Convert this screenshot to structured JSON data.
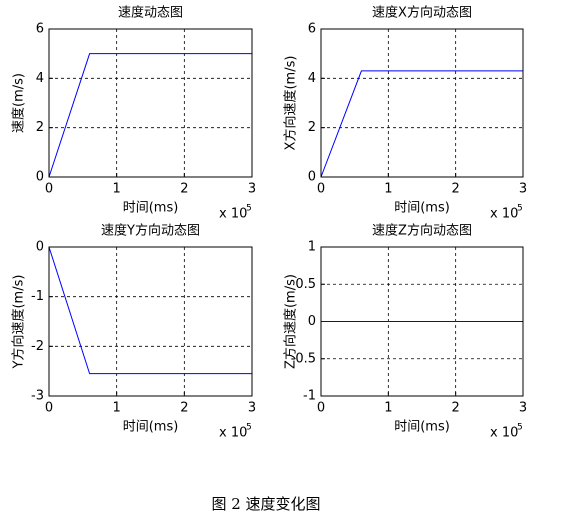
{
  "chart_data": [
    {
      "type": "line",
      "title": "速度动态图",
      "xlabel": "时间(ms)",
      "ylabel": "速度(m/s)",
      "x_multiplier": {
        "base": "x 10",
        "exponent": "5"
      },
      "x": [
        0,
        0.6,
        3
      ],
      "values": [
        0,
        5,
        5
      ],
      "color": "#0000ff",
      "xlim": [
        0,
        3
      ],
      "xticks": [
        0,
        1,
        2,
        3
      ],
      "ylim": [
        0,
        6
      ],
      "yticks": [
        0,
        2,
        4,
        6
      ],
      "grid": true
    },
    {
      "type": "line",
      "title": "速度X方向动态图",
      "xlabel": "时间(ms)",
      "ylabel": "X方向速度(m/s)",
      "x_multiplier": {
        "base": "x 10",
        "exponent": "5"
      },
      "x": [
        0,
        0.6,
        3
      ],
      "values": [
        0,
        4.3,
        4.3
      ],
      "color": "#0000ff",
      "xlim": [
        0,
        3
      ],
      "xticks": [
        0,
        1,
        2,
        3
      ],
      "ylim": [
        0,
        6
      ],
      "yticks": [
        0,
        2,
        4,
        6
      ],
      "grid": true
    },
    {
      "type": "line",
      "title": "速度Y方向动态图",
      "xlabel": "时间(ms)",
      "ylabel": "Y方向速度(m/s)",
      "x_multiplier": {
        "base": "x 10",
        "exponent": "5"
      },
      "x": [
        0,
        0.6,
        3
      ],
      "values": [
        0,
        -2.55,
        -2.55
      ],
      "color": "#0000ff",
      "xlim": [
        0,
        3
      ],
      "xticks": [
        0,
        1,
        2,
        3
      ],
      "ylim": [
        -3,
        0
      ],
      "yticks": [
        -3,
        -2,
        -1,
        0
      ],
      "grid": true
    },
    {
      "type": "line",
      "title": "速度Z方向动态图",
      "xlabel": "时间(ms)",
      "ylabel": "Z方向速度(m/s)",
      "x_multiplier": {
        "base": "x 10",
        "exponent": "5"
      },
      "x": [
        0,
        3
      ],
      "values": [
        0,
        0
      ],
      "color": "#0000ff",
      "xlim": [
        0,
        3
      ],
      "xticks": [
        0,
        1,
        2,
        3
      ],
      "ylim": [
        -1,
        1
      ],
      "yticks": [
        -1,
        -0.5,
        0,
        0.5,
        1
      ],
      "grid": true
    }
  ],
  "caption": "图 2  速度变化图"
}
